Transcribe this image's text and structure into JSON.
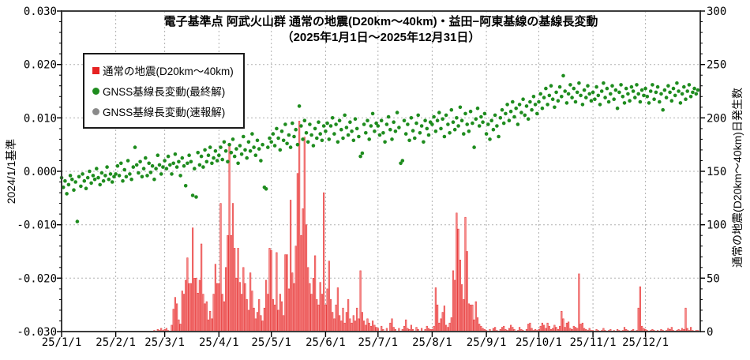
{
  "title": {
    "line1": "電子基準点 阿武火山群 通常の地震(D20km〜40km)・益田−阿東基線の基線長変動",
    "line2": "（2025年1月1日〜2025年12月31日）"
  },
  "legend": {
    "items": [
      {
        "label": "通常の地震(D20km〜40km)",
        "marker": "square",
        "color": "#e62222"
      },
      {
        "label": "GNSS基線長変動(最終解)",
        "marker": "circle",
        "color": "#1e8c1e"
      },
      {
        "label": "GNSS基線長変動(速報解)",
        "marker": "circle",
        "color": "#8a8a8a"
      }
    ]
  },
  "left_axis": {
    "title": "2024/1/1基準",
    "min": -0.03,
    "max": 0.03,
    "major_step": 0.01,
    "minor_step": 0.002,
    "tick_labels": [
      "0.030",
      "0.020",
      "0.010",
      "0.000",
      "-0.010",
      "-0.020",
      "-0.030"
    ]
  },
  "right_axis": {
    "title": "通常の地震(D20km〜40km)日発生数",
    "min": 0,
    "max": 300,
    "major_step": 50,
    "minor_step": 10,
    "tick_labels": [
      "300",
      "250",
      "200",
      "150",
      "100",
      "50",
      "0"
    ]
  },
  "x_axis": {
    "tick_labels": [
      "25/1/1",
      "25/2/1",
      "25/3/1",
      "25/4/1",
      "25/5/1",
      "25/6/1",
      "25/7/1",
      "25/8/1",
      "25/9/1",
      "25/10/1",
      "25/11/1",
      "25/12/1"
    ],
    "month_start_days": [
      0,
      31,
      59,
      90,
      120,
      151,
      181,
      212,
      243,
      273,
      304,
      334
    ],
    "days_total": 364
  },
  "style": {
    "bar_fill": "#f58a8a",
    "bar_stroke": "#e84040",
    "dot_final_color": "#1e8c1e",
    "dot_rapid_color": "#8a8a8a",
    "frame_color": "#3c3c3c",
    "grid_color": "#b0b0b0",
    "tick_color": "#000000"
  },
  "chart_data": {
    "type": "combo",
    "x_unit": "day_of_year_2025",
    "series": [
      {
        "name": "通常の地震(D20km〜40km)",
        "type": "bar",
        "axis": "right",
        "values": [
          0,
          0,
          0,
          0,
          0,
          0,
          0,
          0,
          0,
          0,
          0,
          0,
          0,
          0,
          0,
          0,
          0,
          0,
          0,
          0,
          0,
          0,
          0,
          0,
          0,
          0,
          0,
          0,
          0,
          0,
          0,
          0,
          0,
          0,
          0,
          0,
          0,
          0,
          0,
          0,
          0,
          0,
          0,
          0,
          0,
          0,
          0,
          0,
          0,
          0,
          0,
          0,
          0,
          1,
          0,
          2,
          1,
          3,
          1,
          2,
          3,
          1,
          0,
          6,
          21,
          32,
          26,
          11,
          7,
          38,
          35,
          48,
          69,
          45,
          45,
          97,
          50,
          50,
          36,
          48,
          82,
          35,
          26,
          28,
          11,
          19,
          12,
          35,
          63,
          45,
          45,
          120,
          35,
          28,
          60,
          90,
          175,
          90,
          120,
          78,
          50,
          78,
          46,
          35,
          60,
          45,
          30,
          20,
          55,
          38,
          22,
          12,
          18,
          30,
          15,
          10,
          22,
          48,
          35,
          78,
          76,
          30,
          25,
          74,
          20,
          35,
          28,
          15,
          72,
          72,
          40,
          123,
          55,
          45,
          80,
          148,
          197,
          90,
          115,
          182,
          100,
          60,
          45,
          35,
          50,
          71,
          30,
          25,
          46,
          35,
          130,
          25,
          40,
          66,
          30,
          18,
          12,
          25,
          41,
          15,
          10,
          22,
          8,
          18,
          30,
          12,
          8,
          15,
          10,
          22,
          12,
          57,
          18,
          10,
          6,
          12,
          8,
          5,
          10,
          6,
          4,
          3,
          0,
          5,
          2,
          0,
          3,
          0,
          8,
          12,
          4,
          2,
          0,
          3,
          0,
          2,
          5,
          11,
          3,
          2,
          6,
          2,
          0,
          4,
          2,
          0,
          3,
          0,
          2,
          5,
          3,
          2,
          2,
          5,
          41,
          25,
          8,
          12,
          18,
          24,
          6,
          4,
          8,
          13,
          57,
          48,
          111,
          96,
          67,
          44,
          30,
          107,
          75,
          26,
          25,
          25,
          11,
          28,
          13,
          7,
          5,
          3,
          2,
          1,
          0,
          2,
          0,
          3,
          4,
          1,
          0,
          2,
          4,
          5,
          2,
          1,
          3,
          6,
          4,
          2,
          0,
          1,
          4,
          2,
          1,
          0,
          2,
          7,
          8,
          3,
          1,
          2,
          1,
          2,
          5,
          8,
          6,
          3,
          8,
          5,
          2,
          3,
          6,
          4,
          2,
          5,
          19,
          12,
          4,
          8,
          9,
          3,
          2,
          5,
          4,
          3,
          54,
          7,
          8,
          3,
          2,
          1,
          3,
          1,
          1,
          0,
          2,
          1,
          0,
          1,
          3,
          1,
          0,
          1,
          2,
          0,
          1,
          0,
          2,
          1,
          0,
          1,
          4,
          2,
          1,
          0,
          1,
          2,
          0,
          1,
          22,
          42,
          5,
          3,
          2,
          1,
          0,
          1,
          2,
          1,
          0,
          1,
          0,
          2,
          1,
          0,
          1,
          3,
          2,
          4,
          1,
          0,
          1,
          2,
          1,
          3,
          2,
          22,
          3,
          1,
          4,
          1,
          0,
          1,
          1
        ]
      },
      {
        "name": "GNSS基線長変動(最終解)",
        "type": "scatter",
        "axis": "left",
        "value_scale": 0.0001,
        "values_e4": [
          -12,
          -30,
          -18,
          -42,
          -25,
          -8,
          -15,
          -35,
          -20,
          -94,
          -10,
          -28,
          -5,
          -18,
          -32,
          -12,
          0,
          -22,
          -8,
          -15,
          5,
          -12,
          -25,
          -3,
          -18,
          -8,
          8,
          -15,
          -5,
          -20,
          -10,
          -5,
          10,
          -8,
          15,
          -18,
          3,
          -10,
          20,
          -5,
          -15,
          8,
          45,
          12,
          -3,
          18,
          -10,
          5,
          25,
          -8,
          15,
          -2,
          10,
          -15,
          5,
          30,
          12,
          -5,
          8,
          20,
          5,
          28,
          12,
          -5,
          15,
          32,
          8,
          18,
          -8,
          25,
          10,
          -27,
          15,
          30,
          18,
          -45,
          5,
          -48,
          35,
          12,
          28,
          8,
          40,
          18,
          30,
          45,
          15,
          25,
          38,
          20,
          30,
          45,
          22,
          55,
          38,
          18,
          50,
          35,
          60,
          28,
          42,
          15,
          48,
          32,
          65,
          40,
          25,
          55,
          38,
          70,
          45,
          30,
          58,
          42,
          20,
          50,
          -30,
          -33,
          45,
          62,
          55,
          70,
          48,
          80,
          62,
          40,
          75,
          58,
          88,
          52,
          68,
          45,
          90,
          65,
          78,
          50,
          122,
          85,
          60,
          95,
          72,
          55,
          88,
          68,
          48,
          80,
          62,
          92,
          70,
          58,
          85,
          75,
          90,
          60,
          85,
          100,
          70,
          88,
          55,
          95,
          78,
          62,
          105,
          82,
          68,
          92,
          75,
          58,
          98,
          80,
          65,
          28,
          34,
          88,
          72,
          95,
          60,
          85,
          108,
          75,
          90,
          85,
          68,
          95,
          72,
          55,
          88,
          102,
          78,
          60,
          92,
          75,
          110,
          82,
          15,
          20,
          95,
          70,
          88,
          58,
          100,
          76,
          62,
          90,
          105,
          72,
          85,
          55,
          95,
          80,
          68,
          92,
          88,
          102,
          75,
          95,
          110,
          80,
          98,
          65,
          105,
          88,
          72,
          115,
          92,
          78,
          100,
          85,
          120,
          95,
          70,
          108,
          88,
          75,
          112,
          90,
          45,
          98,
          118,
          85,
          102,
          92,
          108,
          70,
          88,
          60,
          95,
          78,
          105,
          85,
          65,
          100,
          115,
          90,
          108,
          125,
          95,
          112,
          130,
          102,
          118,
          88,
          125,
          110,
          135,
          105,
          122,
          98,
          130,
          115,
          140,
          125,
          108,
          130,
          145,
          118,
          138,
          155,
          125,
          142,
          160,
          135,
          120,
          148,
          132,
          158,
          140,
          179,
          150,
          128,
          145,
          162,
          138,
          155,
          130,
          148,
          165,
          142,
          125,
          152,
          138,
          160,
          145,
          132,
          148,
          135,
          158,
          142,
          125,
          150,
          165,
          138,
          155,
          130,
          145,
          160,
          135,
          152,
          118,
          148,
          162,
          140,
          128,
          155,
          145,
          132,
          158,
          150,
          138,
          162,
          145,
          130,
          152,
          142,
          155,
          140,
          128,
          150,
          162,
          135,
          148,
          158,
          130,
          145,
          115,
          152,
          138,
          160,
          148,
          132,
          155,
          142,
          165,
          150,
          128,
          145,
          158,
          135,
          150,
          162,
          140,
          148,
          155,
          145,
          152
        ]
      },
      {
        "name": "GNSS基線長変動(速報解)",
        "type": "scatter",
        "axis": "left",
        "value_scale": 0.0001,
        "values_e4": []
      }
    ]
  }
}
